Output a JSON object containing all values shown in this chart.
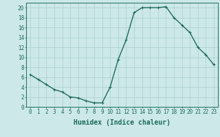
{
  "x": [
    0,
    1,
    2,
    3,
    4,
    5,
    6,
    7,
    8,
    9,
    10,
    11,
    12,
    13,
    14,
    15,
    16,
    17,
    18,
    19,
    20,
    21,
    22,
    23
  ],
  "y": [
    6.5,
    5.5,
    4.5,
    3.5,
    3.0,
    2.0,
    1.8,
    1.2,
    0.8,
    0.8,
    4.0,
    9.5,
    13.5,
    19.0,
    20.0,
    20.0,
    20.0,
    20.2,
    18.0,
    16.5,
    15.0,
    12.0,
    10.5,
    8.5
  ],
  "line_color": "#1a6b5a",
  "marker": "+",
  "marker_size": 3,
  "background_color": "#cce8e8",
  "grid_color": "#aacfcf",
  "xlabel": "Humidex (Indice chaleur)",
  "ylim": [
    0,
    21
  ],
  "xlim": [
    -0.5,
    23.5
  ],
  "yticks": [
    0,
    2,
    4,
    6,
    8,
    10,
    12,
    14,
    16,
    18,
    20
  ],
  "xticks": [
    0,
    1,
    2,
    3,
    4,
    5,
    6,
    7,
    8,
    9,
    10,
    11,
    12,
    13,
    14,
    15,
    16,
    17,
    18,
    19,
    20,
    21,
    22,
    23
  ],
  "tick_fontsize": 5.5,
  "xlabel_fontsize": 7,
  "line_width": 1.0,
  "marker_edge_width": 0.8
}
